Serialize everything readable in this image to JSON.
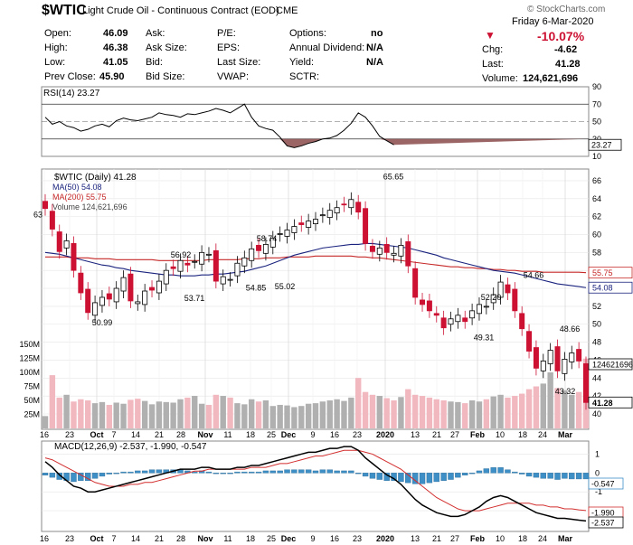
{
  "header": {
    "symbol": "$WTIC",
    "name": "Light Crude Oil - Continuous Contract (EOD)",
    "exchange": "CME",
    "watermark": "© StockCharts.com",
    "date": "Friday  6-Mar-2020",
    "pct_change": "-10.07%",
    "fields": {
      "open_label": "Open:",
      "open": "46.09",
      "high_label": "High:",
      "high": "46.38",
      "low_label": "Low:",
      "low": "41.05",
      "prev_label": "Prev Close:",
      "prev": "45.90",
      "ask_label": "Ask:",
      "ask_size_label": "Ask Size:",
      "bid_label": "Bid:",
      "bid_size_label": "Bid Size:",
      "pe_label": "P/E:",
      "eps_label": "EPS:",
      "last_size_label": "Last Size:",
      "vwap_label": "VWAP:",
      "options_label": "Options:",
      "options": "no",
      "div_label": "Annual Dividend:",
      "div": "N/A",
      "yield_label": "Yield:",
      "yield": "N/A",
      "sctr_label": "SCTR:",
      "chg_label": "Chg:",
      "chg": "-4.62",
      "last_label": "Last:",
      "last": "41.28",
      "vol_label": "Volume:",
      "vol": "124,621,696"
    }
  },
  "colors": {
    "up": "#000000",
    "down": "#cc1133",
    "ma50": "#1a237e",
    "ma200": "#c62828",
    "vol_up": "#b0b0b0",
    "vol_down": "#f2b8c0",
    "hist": "#3d8fc6"
  },
  "chart_data": [
    {
      "type": "line",
      "title": "RSI(14) 23.27",
      "series": [
        {
          "name": "RSI(14)",
          "values": [
            55,
            47,
            50,
            45,
            43,
            39,
            41,
            45,
            47,
            44,
            51,
            54,
            52,
            51,
            53,
            55,
            60,
            58,
            57,
            55,
            59,
            58,
            60,
            62,
            65,
            63,
            60,
            65,
            70,
            55,
            45,
            42,
            40,
            32,
            22,
            20,
            22,
            25,
            27,
            30,
            31,
            34,
            40,
            48,
            60,
            55,
            45,
            33,
            28,
            23.27
          ]
        }
      ],
      "ylim": [
        10,
        90
      ],
      "ticks": [
        "90",
        "70",
        "50",
        "30",
        "10"
      ],
      "reference_lines": [
        70,
        30
      ],
      "last_label": "23.27"
    },
    {
      "type": "candlestick",
      "title": "$WTIC (Daily) 41.28",
      "legend": [
        "MA(50) 54.08",
        "MA(200) 55.75",
        "Volume 124,621,696"
      ],
      "closes": [
        62.9,
        60.6,
        58.1,
        59.3,
        56.0,
        53.5,
        51.3,
        52.4,
        53.0,
        52.8,
        54.0,
        55.2,
        52.6,
        52.5,
        53.7,
        53.8,
        54.8,
        56.0,
        56.2,
        57.1,
        56.6,
        57.0,
        58.0,
        57.8,
        54.8,
        55.3,
        55.0,
        56.8,
        57.4,
        58.4,
        58.2,
        58.9,
        59.6,
        60.1,
        60.5,
        60.9,
        61.1,
        61.5,
        61.7,
        62.2,
        62.7,
        63.0,
        63.3,
        63.9,
        62.5,
        59.0,
        58.1,
        58.5,
        58.0,
        57.9,
        58.8,
        56.5,
        53.0,
        52.2,
        51.5,
        51.0,
        49.6,
        50.6,
        51.0,
        50.3,
        51.5,
        52.2,
        52.0,
        53.3,
        54.7,
        53.5,
        51.5,
        49.5,
        47.0,
        45.1,
        45.9,
        47.1,
        44.8,
        46.1,
        46.8,
        45.9,
        41.28
      ],
      "ma50": [
        58.0,
        57.9,
        57.8,
        57.6,
        57.4,
        57.2,
        57.0,
        56.8,
        56.6,
        56.5,
        56.3,
        56.2,
        56.0,
        55.9,
        55.8,
        55.7,
        55.6,
        55.5,
        55.5,
        55.4,
        55.4,
        55.4,
        55.5,
        55.5,
        55.6,
        55.6,
        55.7,
        55.8,
        55.9,
        56.1,
        56.3,
        56.5,
        56.8,
        57.1,
        57.4,
        57.7,
        57.9,
        58.1,
        58.3,
        58.5,
        58.6,
        58.7,
        58.8,
        58.9,
        58.9,
        59.0,
        59.0,
        58.9,
        58.8,
        58.7,
        58.6,
        58.5,
        58.3,
        58.1,
        57.9,
        57.7,
        57.4,
        57.2,
        57.0,
        56.8,
        56.6,
        56.4,
        56.2,
        56.0,
        55.9,
        55.8,
        55.7,
        55.5,
        55.3,
        55.1,
        54.9,
        54.7,
        54.5,
        54.4,
        54.3,
        54.2,
        54.08
      ],
      "ma200": [
        57.5,
        57.5,
        57.5,
        57.5,
        57.4,
        57.4,
        57.4,
        57.3,
        57.3,
        57.3,
        57.2,
        57.2,
        57.2,
        57.2,
        57.2,
        57.2,
        57.1,
        57.1,
        57.1,
        57.1,
        57.1,
        57.1,
        57.1,
        57.2,
        57.2,
        57.2,
        57.2,
        57.2,
        57.3,
        57.3,
        57.3,
        57.4,
        57.4,
        57.4,
        57.5,
        57.5,
        57.5,
        57.5,
        57.6,
        57.6,
        57.6,
        57.6,
        57.6,
        57.6,
        57.5,
        57.5,
        57.4,
        57.4,
        57.3,
        57.2,
        57.1,
        57.0,
        56.9,
        56.8,
        56.7,
        56.6,
        56.5,
        56.4,
        56.4,
        56.3,
        56.3,
        56.2,
        56.2,
        56.1,
        56.1,
        56.0,
        56.0,
        55.9,
        55.9,
        55.9,
        55.8,
        55.8,
        55.8,
        55.8,
        55.8,
        55.8,
        55.75
      ],
      "volume_m": [
        22,
        95,
        55,
        60,
        48,
        52,
        50,
        45,
        47,
        42,
        46,
        44,
        51,
        53,
        49,
        43,
        48,
        47,
        46,
        52,
        55,
        58,
        44,
        42,
        60,
        58,
        55,
        45,
        43,
        52,
        48,
        50,
        40,
        42,
        41,
        38,
        40,
        44,
        45,
        48,
        50,
        52,
        49,
        55,
        90,
        65,
        60,
        58,
        54,
        50,
        56,
        70,
        60,
        58,
        55,
        52,
        50,
        48,
        47,
        45,
        50,
        48,
        52,
        57,
        60,
        55,
        58,
        62,
        70,
        75,
        80,
        100,
        72,
        68,
        60,
        65,
        124.6
      ],
      "price_ticks": [
        "66",
        "64",
        "62",
        "60",
        "58",
        "56",
        "54",
        "52",
        "50",
        "48",
        "46",
        "44",
        "42",
        "40"
      ],
      "price_range": [
        40,
        67
      ],
      "volume_ticks": [
        "150M",
        "125M",
        "100M",
        "75M",
        "50M",
        "25M"
      ],
      "annotations": [
        "65.65",
        "58.74",
        "56.92",
        "54.85",
        "55.02",
        "53.71",
        "50.99",
        "52.20",
        "54.66",
        "49.31",
        "48.66",
        "43.32",
        "63"
      ],
      "right_labels": [
        "55.75",
        "54.08",
        "124621696",
        "41.28"
      ]
    },
    {
      "type": "line",
      "title": "MACD(12,26,9) -2.537, -1.990, -0.547",
      "series": [
        {
          "name": "MACD",
          "values": [
            0.6,
            0.3,
            -0.1,
            -0.4,
            -0.7,
            -0.8,
            -1.0,
            -1.0,
            -0.9,
            -0.8,
            -0.7,
            -0.6,
            -0.5,
            -0.4,
            -0.3,
            -0.2,
            -0.1,
            0.0,
            0.1,
            0.2,
            0.2,
            0.2,
            0.3,
            0.3,
            0.2,
            0.2,
            0.2,
            0.3,
            0.3,
            0.4,
            0.4,
            0.5,
            0.6,
            0.7,
            0.8,
            0.9,
            1.0,
            1.1,
            1.1,
            1.2,
            1.3,
            1.3,
            1.4,
            1.4,
            1.2,
            0.8,
            0.5,
            0.2,
            -0.1,
            -0.3,
            -0.6,
            -1.0,
            -1.4,
            -1.7,
            -1.9,
            -2.1,
            -2.2,
            -2.3,
            -2.3,
            -2.2,
            -2.0,
            -1.8,
            -1.5,
            -1.3,
            -1.2,
            -1.3,
            -1.5,
            -1.7,
            -1.9,
            -2.1,
            -2.2,
            -2.3,
            -2.4,
            -2.4,
            -2.45,
            -2.5,
            -2.537
          ]
        },
        {
          "name": "Signal",
          "values": [
            0.8,
            0.7,
            0.5,
            0.3,
            0.1,
            -0.1,
            -0.3,
            -0.5,
            -0.6,
            -0.7,
            -0.7,
            -0.7,
            -0.6,
            -0.6,
            -0.5,
            -0.5,
            -0.4,
            -0.3,
            -0.2,
            -0.1,
            0.0,
            0.1,
            0.1,
            0.2,
            0.2,
            0.2,
            0.2,
            0.2,
            0.2,
            0.3,
            0.3,
            0.3,
            0.4,
            0.5,
            0.5,
            0.6,
            0.7,
            0.8,
            0.9,
            0.9,
            1.0,
            1.1,
            1.2,
            1.2,
            1.2,
            1.1,
            1.0,
            0.8,
            0.6,
            0.4,
            0.2,
            -0.1,
            -0.4,
            -0.7,
            -1.0,
            -1.3,
            -1.5,
            -1.7,
            -1.9,
            -2.0,
            -2.0,
            -2.0,
            -1.9,
            -1.8,
            -1.7,
            -1.6,
            -1.6,
            -1.6,
            -1.6,
            -1.7,
            -1.7,
            -1.8,
            -1.8,
            -1.9,
            -1.9,
            -1.95,
            -1.99
          ]
        }
      ],
      "ylim": [
        -3,
        1.5
      ],
      "ticks": [
        "1",
        "0",
        "-1",
        "-2"
      ],
      "last_labels": [
        "-0.547",
        "-1.990",
        "-2.537"
      ]
    },
    {
      "type": "axis",
      "x_ticks_top": [
        "16",
        "23",
        "Oct",
        "7",
        "14",
        "21",
        "28",
        "Nov",
        "11",
        "18",
        "25",
        "Dec",
        "9",
        "16",
        "23",
        "2020",
        "13",
        "21",
        "27",
        "Feb",
        "10",
        "18",
        "24",
        "Mar"
      ],
      "x_ticks_bottom": [
        "16",
        "23",
        "Oct",
        "7",
        "14",
        "21",
        "28",
        "Nov",
        "11",
        "18",
        "25",
        "Dec",
        "9",
        "16",
        "23",
        "2020",
        "13",
        "21",
        "27",
        "Feb",
        "10",
        "18",
        "24",
        "Mar"
      ]
    }
  ]
}
